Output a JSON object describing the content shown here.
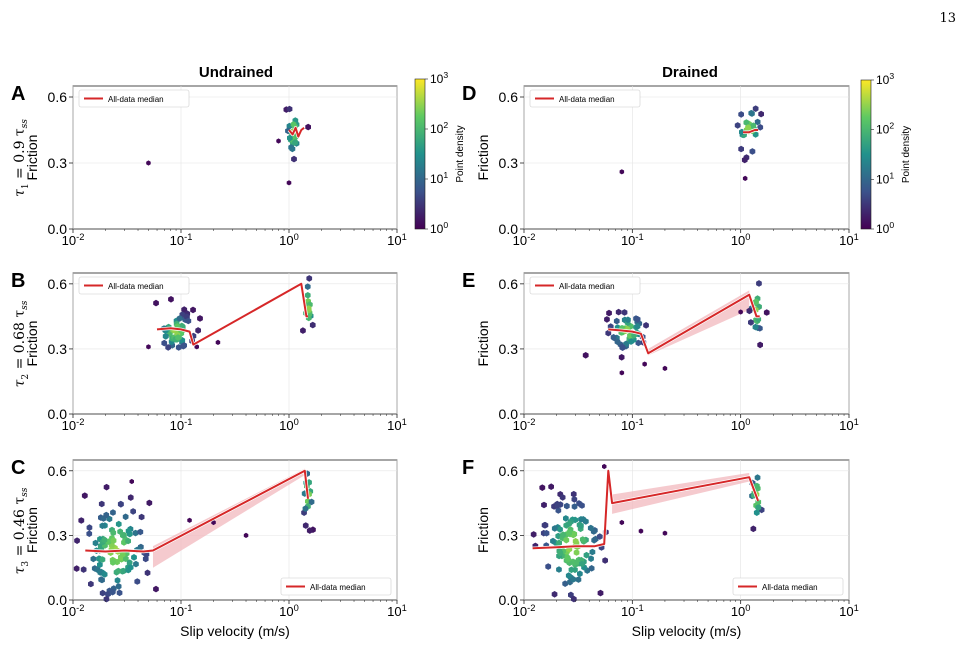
{
  "page_number": "13",
  "column_titles": [
    "Undrained",
    "Drained"
  ],
  "row_labels": [
    {
      "sym": "τ",
      "sub": "1",
      "rest": " = 0.9 τ",
      "ss": "ss"
    },
    {
      "sym": "τ",
      "sub": "2",
      "rest": " = 0.68 τ",
      "ss": "ss"
    },
    {
      "sym": "τ",
      "sub": "3",
      "rest": " = 0.46 τ",
      "ss": "ss"
    }
  ],
  "colorbar": {
    "label": "Point density",
    "ticks": [
      {
        "base": "10",
        "exp": "0"
      },
      {
        "base": "10",
        "exp": "1"
      },
      {
        "base": "10",
        "exp": "2"
      },
      {
        "base": "10",
        "exp": "3"
      }
    ],
    "colors": [
      "#440154",
      "#3b528b",
      "#21918c",
      "#5ec962",
      "#fde725"
    ]
  },
  "colors": {
    "median": "#d62728",
    "band": "#f2b8bd"
  },
  "axes_common": {
    "xscale": "log",
    "xlim": [
      0.01,
      10
    ],
    "xticks": [
      {
        "base": "10",
        "exp": "-2"
      },
      {
        "base": "10",
        "exp": "-1"
      },
      {
        "base": "10",
        "exp": "0"
      },
      {
        "base": "10",
        "exp": "1"
      }
    ],
    "ytick_labels": [
      "0.0",
      "0.3",
      "0.6"
    ],
    "ylabel": "Friction",
    "xlabel": "Slip velocity (m/s)",
    "legend_label": "All-data median"
  },
  "chart_data": [
    {
      "panel": "A",
      "type": "scatter",
      "title": "Undrained",
      "ylabel": "Friction",
      "ylim": [
        0,
        0.65
      ],
      "legend": "top-left",
      "clusters": [
        {
          "cx": 1.1,
          "cy": 0.44,
          "sx": 0.035,
          "sy": 0.06,
          "n": 26
        }
      ],
      "outliers": [
        [
          0.05,
          0.3
        ],
        [
          1.0,
          0.21
        ],
        [
          0.8,
          0.4
        ]
      ],
      "median": [
        [
          1.0,
          0.45
        ],
        [
          1.08,
          0.43
        ],
        [
          1.15,
          0.46
        ],
        [
          1.22,
          0.42
        ],
        [
          1.3,
          0.45
        ],
        [
          1.38,
          0.46
        ]
      ]
    },
    {
      "panel": "B",
      "type": "scatter",
      "ylabel": "Friction",
      "ylim": [
        0,
        0.65
      ],
      "legend": "top-left",
      "clusters": [
        {
          "cx": 0.09,
          "cy": 0.38,
          "sx": 0.09,
          "sy": 0.045,
          "n": 55
        },
        {
          "cx": 1.5,
          "cy": 0.49,
          "sx": 0.025,
          "sy": 0.07,
          "n": 16
        }
      ],
      "outliers": [
        [
          0.05,
          0.31
        ],
        [
          0.22,
          0.33
        ],
        [
          0.14,
          0.31
        ]
      ],
      "median": [
        [
          0.06,
          0.39
        ],
        [
          0.08,
          0.395
        ],
        [
          0.1,
          0.39
        ],
        [
          0.12,
          0.38
        ],
        [
          0.13,
          0.32
        ],
        [
          1.3,
          0.6
        ],
        [
          1.45,
          0.45
        ],
        [
          1.5,
          0.45
        ]
      ]
    },
    {
      "panel": "C",
      "type": "scatter",
      "xlabel": "Slip velocity (m/s)",
      "ylabel": "Friction",
      "ylim": [
        0,
        0.65
      ],
      "legend": "bottom-right",
      "clusters": [
        {
          "cx": 0.025,
          "cy": 0.23,
          "sx": 0.16,
          "sy": 0.12,
          "n": 120
        },
        {
          "cx": 1.5,
          "cy": 0.49,
          "sx": 0.025,
          "sy": 0.07,
          "n": 16
        }
      ],
      "outliers": [
        [
          0.12,
          0.37
        ],
        [
          0.2,
          0.36
        ],
        [
          0.4,
          0.3
        ],
        [
          0.035,
          0.55
        ]
      ],
      "median": [
        [
          0.013,
          0.23
        ],
        [
          0.02,
          0.225
        ],
        [
          0.03,
          0.23
        ],
        [
          0.045,
          0.225
        ],
        [
          0.055,
          0.23
        ],
        [
          1.4,
          0.6
        ],
        [
          1.5,
          0.47
        ]
      ],
      "band": {
        "x": [
          0.055,
          1.4
        ],
        "upper": [
          0.25,
          0.61
        ],
        "lower": [
          0.15,
          0.58
        ]
      }
    },
    {
      "panel": "D",
      "type": "scatter",
      "title": "Drained",
      "ylabel": "Friction",
      "ylim": [
        0,
        0.65
      ],
      "legend": "top-left",
      "clusters": [
        {
          "cx": 1.2,
          "cy": 0.45,
          "sx": 0.06,
          "sy": 0.06,
          "n": 26
        }
      ],
      "outliers": [
        [
          0.08,
          0.26
        ],
        [
          1.1,
          0.23
        ]
      ],
      "median": [
        [
          1.05,
          0.44
        ],
        [
          1.2,
          0.44
        ],
        [
          1.35,
          0.45
        ],
        [
          1.45,
          0.45
        ]
      ]
    },
    {
      "panel": "E",
      "type": "scatter",
      "ylabel": "Friction",
      "ylim": [
        0,
        0.65
      ],
      "legend": "top-left",
      "clusters": [
        {
          "cx": 0.09,
          "cy": 0.38,
          "sx": 0.09,
          "sy": 0.045,
          "n": 55
        },
        {
          "cx": 1.4,
          "cy": 0.48,
          "sx": 0.03,
          "sy": 0.07,
          "n": 18
        }
      ],
      "outliers": [
        [
          0.08,
          0.19
        ],
        [
          0.2,
          0.21
        ],
        [
          0.13,
          0.23
        ],
        [
          1.0,
          0.47
        ]
      ],
      "median": [
        [
          0.06,
          0.39
        ],
        [
          0.08,
          0.385
        ],
        [
          0.1,
          0.38
        ],
        [
          0.12,
          0.37
        ],
        [
          0.14,
          0.28
        ],
        [
          1.2,
          0.55
        ],
        [
          1.4,
          0.45
        ],
        [
          1.5,
          0.45
        ]
      ],
      "band": {
        "x": [
          0.14,
          1.2
        ],
        "upper": [
          0.3,
          0.57
        ],
        "lower": [
          0.27,
          0.48
        ]
      }
    },
    {
      "panel": "F",
      "type": "scatter",
      "xlabel": "Slip velocity (m/s)",
      "ylabel": "Friction",
      "ylim": [
        0,
        0.65
      ],
      "legend": "bottom-right",
      "clusters": [
        {
          "cx": 0.028,
          "cy": 0.25,
          "sx": 0.15,
          "sy": 0.12,
          "n": 120
        },
        {
          "cx": 1.4,
          "cy": 0.48,
          "sx": 0.03,
          "sy": 0.07,
          "n": 18
        }
      ],
      "outliers": [
        [
          0.12,
          0.32
        ],
        [
          0.2,
          0.31
        ],
        [
          0.08,
          0.36
        ],
        [
          0.055,
          0.62
        ]
      ],
      "median": [
        [
          0.012,
          0.24
        ],
        [
          0.02,
          0.245
        ],
        [
          0.03,
          0.25
        ],
        [
          0.045,
          0.25
        ],
        [
          0.055,
          0.26
        ],
        [
          0.06,
          0.6
        ],
        [
          0.065,
          0.45
        ],
        [
          1.2,
          0.57
        ],
        [
          1.45,
          0.46
        ]
      ],
      "band": {
        "x": [
          0.065,
          1.2
        ],
        "upper": [
          0.49,
          0.59
        ],
        "lower": [
          0.4,
          0.55
        ]
      }
    }
  ]
}
